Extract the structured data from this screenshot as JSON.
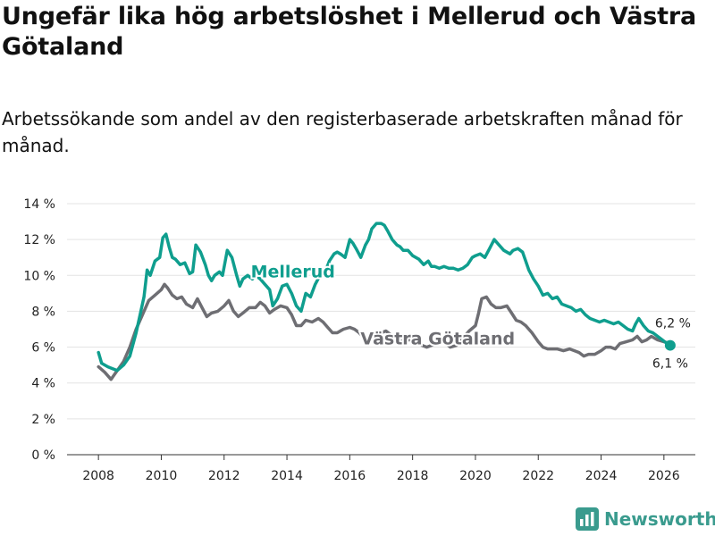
{
  "title": "Ungefär lika hög arbetslöshet i Mellerud och Västra Götaland",
  "subtitle": "Arbetssökande som andel av den registerbaserade arbetskraften månad för månad.",
  "brand": {
    "name": "Newsworthy",
    "icon": "bar-chart-logo-icon",
    "color": "#3a9b8e"
  },
  "chart_data": {
    "type": "line",
    "xlim": [
      2007.0,
      2027.0
    ],
    "ylim": [
      0,
      14
    ],
    "y_ticks": [
      0,
      2,
      4,
      6,
      8,
      10,
      12,
      14
    ],
    "y_tick_labels": [
      "0 %",
      "2 %",
      "4 %",
      "6 %",
      "8 %",
      "10 %",
      "12 %",
      "14 %"
    ],
    "x_ticks": [
      2008,
      2010,
      2012,
      2014,
      2016,
      2018,
      2020,
      2022,
      2024,
      2026
    ],
    "x_tick_labels": [
      "2008",
      "2010",
      "2012",
      "2014",
      "2016",
      "2018",
      "2020",
      "2022",
      "2024",
      "2026"
    ],
    "grid": "horizontal",
    "series": [
      {
        "name": "Mellerud",
        "color": "#0f9e8e",
        "end_label": "6,1 %",
        "end_marker": true,
        "x": [
          2008.0,
          2008.1,
          2008.3,
          2008.45,
          2008.6,
          2008.8,
          2009.0,
          2009.2,
          2009.35,
          2009.45,
          2009.55,
          2009.65,
          2009.8,
          2009.95,
          2010.05,
          2010.15,
          2010.25,
          2010.35,
          2010.45,
          2010.6,
          2010.75,
          2010.9,
          2011.0,
          2011.1,
          2011.25,
          2011.4,
          2011.5,
          2011.6,
          2011.7,
          2011.85,
          2011.95,
          2012.1,
          2012.25,
          2012.4,
          2012.5,
          2012.6,
          2012.75,
          2012.9,
          2013.0,
          2013.15,
          2013.3,
          2013.45,
          2013.55,
          2013.7,
          2013.85,
          2014.0,
          2014.15,
          2014.3,
          2014.45,
          2014.6,
          2014.75,
          2014.9,
          2015.05,
          2015.2,
          2015.35,
          2015.5,
          2015.6,
          2015.7,
          2015.85,
          2016.0,
          2016.1,
          2016.2,
          2016.35,
          2016.5,
          2016.6,
          2016.7,
          2016.85,
          2017.0,
          2017.1,
          2017.2,
          2017.35,
          2017.5,
          2017.6,
          2017.7,
          2017.85,
          2018.0,
          2018.1,
          2018.2,
          2018.35,
          2018.5,
          2018.6,
          2018.7,
          2018.85,
          2019.0,
          2019.15,
          2019.3,
          2019.45,
          2019.6,
          2019.75,
          2019.9,
          2020.0,
          2020.15,
          2020.3,
          2020.45,
          2020.6,
          2020.75,
          2020.9,
          2021.0,
          2021.1,
          2021.2,
          2021.35,
          2021.5,
          2021.6,
          2021.7,
          2021.85,
          2022.0,
          2022.15,
          2022.3,
          2022.45,
          2022.6,
          2022.75,
          2022.9,
          2023.05,
          2023.2,
          2023.35,
          2023.5,
          2023.65,
          2023.8,
          2023.95,
          2024.1,
          2024.25,
          2024.4,
          2024.55,
          2024.7,
          2024.85,
          2025.0,
          2025.1,
          2025.2,
          2025.35,
          2025.5,
          2025.65,
          2025.8,
          2025.95,
          2026.1,
          2026.2
        ],
        "values": [
          5.7,
          5.1,
          4.9,
          4.8,
          4.7,
          5.0,
          5.5,
          6.8,
          8.0,
          8.8,
          10.3,
          10.0,
          10.8,
          11.0,
          12.1,
          12.3,
          11.6,
          11.0,
          10.9,
          10.6,
          10.7,
          10.1,
          10.2,
          11.7,
          11.3,
          10.6,
          10.0,
          9.7,
          10.0,
          10.2,
          10.0,
          11.4,
          11.0,
          10.0,
          9.4,
          9.8,
          10.0,
          9.8,
          10.0,
          9.8,
          9.5,
          9.2,
          8.3,
          8.7,
          9.4,
          9.5,
          9.0,
          8.3,
          8.0,
          9.0,
          8.8,
          9.5,
          10.0,
          10.1,
          10.8,
          11.2,
          11.3,
          11.2,
          11.0,
          12.0,
          11.8,
          11.5,
          11.0,
          11.7,
          12.0,
          12.6,
          12.9,
          12.9,
          12.8,
          12.5,
          12.0,
          11.7,
          11.6,
          11.4,
          11.4,
          11.1,
          11.0,
          10.9,
          10.6,
          10.8,
          10.5,
          10.5,
          10.4,
          10.5,
          10.4,
          10.4,
          10.3,
          10.4,
          10.6,
          11.0,
          11.1,
          11.2,
          11.0,
          11.5,
          12.0,
          11.7,
          11.4,
          11.3,
          11.2,
          11.4,
          11.5,
          11.3,
          10.8,
          10.3,
          9.8,
          9.4,
          8.9,
          9.0,
          8.7,
          8.8,
          8.4,
          8.3,
          8.2,
          8.0,
          8.1,
          7.8,
          7.6,
          7.5,
          7.4,
          7.5,
          7.4,
          7.3,
          7.4,
          7.2,
          7.0,
          6.9,
          7.3,
          7.6,
          7.2,
          6.9,
          6.8,
          6.6,
          6.4,
          6.2,
          6.1
        ]
      },
      {
        "name": "Västra Götaland",
        "color": "#6e6e73",
        "end_label": "6,2 %",
        "end_marker": false,
        "x": [
          2008.0,
          2008.2,
          2008.4,
          2008.6,
          2008.8,
          2009.0,
          2009.2,
          2009.4,
          2009.6,
          2009.8,
          2010.0,
          2010.1,
          2010.2,
          2010.35,
          2010.5,
          2010.65,
          2010.8,
          2011.0,
          2011.15,
          2011.3,
          2011.45,
          2011.6,
          2011.8,
          2012.0,
          2012.15,
          2012.3,
          2012.45,
          2012.6,
          2012.8,
          2013.0,
          2013.15,
          2013.3,
          2013.45,
          2013.6,
          2013.8,
          2014.0,
          2014.15,
          2014.3,
          2014.45,
          2014.6,
          2014.8,
          2015.0,
          2015.15,
          2015.3,
          2015.45,
          2015.6,
          2015.8,
          2016.0,
          2016.15,
          2016.3,
          2016.45,
          2016.6,
          2016.8,
          2017.0,
          2017.15,
          2017.3,
          2017.45,
          2017.6,
          2017.8,
          2018.0,
          2018.15,
          2018.3,
          2018.45,
          2018.6,
          2018.8,
          2019.0,
          2019.2,
          2019.4,
          2019.6,
          2019.8,
          2020.0,
          2020.1,
          2020.2,
          2020.35,
          2020.5,
          2020.65,
          2020.8,
          2021.0,
          2021.15,
          2021.3,
          2021.45,
          2021.6,
          2021.8,
          2022.0,
          2022.15,
          2022.3,
          2022.45,
          2022.6,
          2022.8,
          2023.0,
          2023.15,
          2023.3,
          2023.45,
          2023.6,
          2023.8,
          2024.0,
          2024.15,
          2024.3,
          2024.45,
          2024.6,
          2024.8,
          2025.0,
          2025.15,
          2025.3,
          2025.45,
          2025.6,
          2025.8,
          2026.0,
          2026.2
        ],
        "values": [
          4.9,
          4.6,
          4.2,
          4.7,
          5.2,
          6.0,
          7.0,
          7.8,
          8.6,
          8.9,
          9.2,
          9.5,
          9.3,
          8.9,
          8.7,
          8.8,
          8.4,
          8.2,
          8.7,
          8.2,
          7.7,
          7.9,
          8.0,
          8.3,
          8.6,
          8.0,
          7.7,
          7.9,
          8.2,
          8.2,
          8.5,
          8.3,
          7.9,
          8.1,
          8.3,
          8.2,
          7.8,
          7.2,
          7.2,
          7.5,
          7.4,
          7.6,
          7.4,
          7.1,
          6.8,
          6.8,
          7.0,
          7.1,
          7.0,
          6.8,
          6.5,
          6.5,
          6.7,
          6.8,
          6.9,
          6.7,
          6.4,
          6.3,
          6.4,
          6.4,
          6.3,
          6.1,
          6.0,
          6.1,
          6.2,
          6.3,
          6.0,
          6.1,
          6.5,
          6.9,
          7.2,
          7.9,
          8.7,
          8.8,
          8.4,
          8.2,
          8.2,
          8.3,
          7.9,
          7.5,
          7.4,
          7.2,
          6.8,
          6.3,
          6.0,
          5.9,
          5.9,
          5.9,
          5.8,
          5.9,
          5.8,
          5.7,
          5.5,
          5.6,
          5.6,
          5.8,
          6.0,
          6.0,
          5.9,
          6.2,
          6.3,
          6.4,
          6.6,
          6.3,
          6.4,
          6.6,
          6.4,
          6.3,
          6.2
        ]
      }
    ]
  }
}
